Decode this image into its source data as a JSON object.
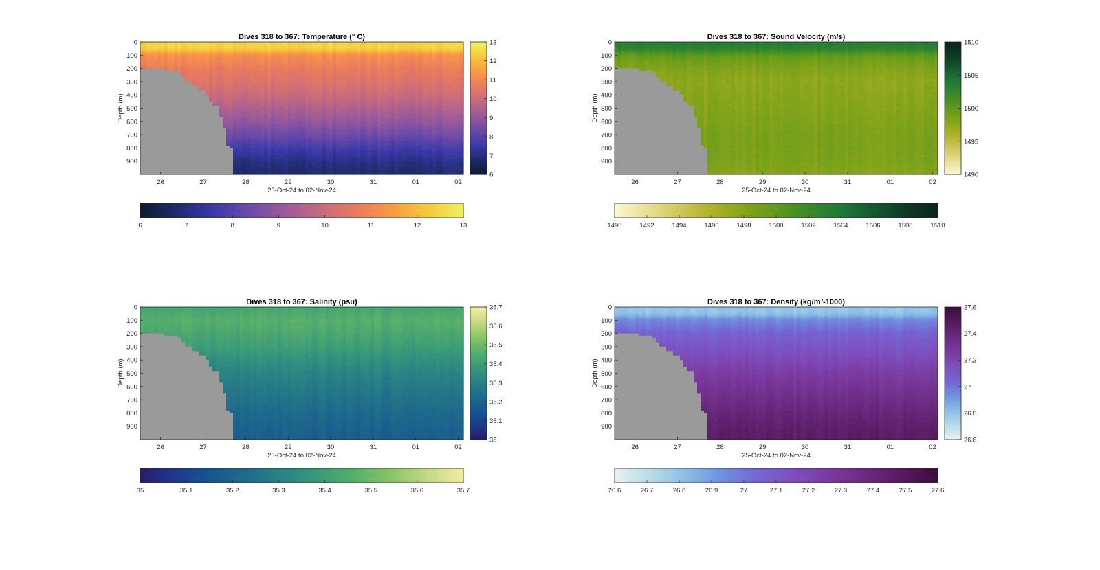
{
  "chart_data": [
    {
      "type": "heatmap",
      "title": "Dives 318 to 367: Temperature (° C)",
      "xlabel": "25-Oct-24 to 02-Nov-24",
      "ylabel": "Depth (m)",
      "x_ticks": [
        "26",
        "27",
        "28",
        "29",
        "30",
        "31",
        "01",
        "02"
      ],
      "y_ticks": [
        "0",
        "100",
        "200",
        "300",
        "400",
        "500",
        "600",
        "700",
        "800",
        "900"
      ],
      "xlim": [
        "25-Oct-24",
        "02-Nov-24"
      ],
      "ylim": [
        1000,
        0
      ],
      "colorbar_range": [
        6,
        13
      ],
      "colorbar_ticks": [
        "6",
        "7",
        "8",
        "9",
        "10",
        "11",
        "12",
        "13"
      ],
      "horizontal_colorbar_ticks": [
        "6",
        "7",
        "8",
        "9",
        "10",
        "11",
        "12",
        "13"
      ],
      "colors": [
        "#0d1a2e",
        "#1d2b6b",
        "#3a3aa8",
        "#6a4aa8",
        "#9a5a9a",
        "#c46a80",
        "#e97a5e",
        "#f99a45",
        "#f5c83a",
        "#f0f060"
      ],
      "profile": {
        "depths": [
          0,
          50,
          100,
          150,
          200,
          300,
          400,
          500,
          600,
          700,
          800,
          900,
          1000
        ],
        "values": [
          12.5,
          12.4,
          11.2,
          11.0,
          10.7,
          10.4,
          10.0,
          9.5,
          9.0,
          8.4,
          7.7,
          7.1,
          6.8
        ]
      }
    },
    {
      "type": "heatmap",
      "title": "Dives 318 to 367: Sound Velocity (m/s)",
      "xlabel": "25-Oct-24 to 02-Nov-24",
      "ylabel": "Depth (m)",
      "x_ticks": [
        "26",
        "27",
        "28",
        "29",
        "30",
        "31",
        "01",
        "02"
      ],
      "y_ticks": [
        "0",
        "100",
        "200",
        "300",
        "400",
        "500",
        "600",
        "700",
        "800",
        "900"
      ],
      "xlim": [
        "25-Oct-24",
        "02-Nov-24"
      ],
      "ylim": [
        1000,
        0
      ],
      "colorbar_range": [
        1490,
        1510
      ],
      "colorbar_ticks": [
        "1490",
        "1495",
        "1500",
        "1505",
        "1510"
      ],
      "horizontal_colorbar_ticks": [
        "1490",
        "1492",
        "1494",
        "1496",
        "1498",
        "1500",
        "1502",
        "1504",
        "1506",
        "1508",
        "1510"
      ],
      "colors": [
        "#fbf7d0",
        "#eadf95",
        "#cfc65a",
        "#aeb12c",
        "#85a41a",
        "#5f9a1c",
        "#3a8a2a",
        "#1f7a36",
        "#155a30",
        "#0e3b24",
        "#0a2519"
      ],
      "profile": {
        "depths": [
          0,
          50,
          100,
          150,
          200,
          300,
          400,
          500,
          600,
          700,
          800,
          900,
          1000
        ],
        "values": [
          1503.5,
          1503.0,
          1500.0,
          1499.0,
          1498.2,
          1497.5,
          1497.8,
          1498.0,
          1498.3,
          1498.6,
          1498.6,
          1498.4,
          1498.0
        ]
      }
    },
    {
      "type": "heatmap",
      "title": "Dives 318 to 367: Salinity (psu)",
      "xlabel": "25-Oct-24 to 02-Nov-24",
      "ylabel": "Depth (m)",
      "x_ticks": [
        "26",
        "27",
        "28",
        "29",
        "30",
        "31",
        "01",
        "02"
      ],
      "y_ticks": [
        "0",
        "100",
        "200",
        "300",
        "400",
        "500",
        "600",
        "700",
        "800",
        "900"
      ],
      "xlim": [
        "25-Oct-24",
        "02-Nov-24"
      ],
      "ylim": [
        1000,
        0
      ],
      "colorbar_range": [
        35,
        35.7
      ],
      "colorbar_ticks": [
        "35",
        "35.1",
        "35.2",
        "35.3",
        "35.4",
        "35.5",
        "35.6",
        "35.7"
      ],
      "horizontal_colorbar_ticks": [
        "35",
        "35.1",
        "35.2",
        "35.3",
        "35.4",
        "35.5",
        "35.6",
        "35.7"
      ],
      "colors": [
        "#2a1a6a",
        "#1e3a8f",
        "#17568f",
        "#1f6d8a",
        "#2a8384",
        "#3b9a78",
        "#58b06a",
        "#8ac46a",
        "#c4d883",
        "#f4eca0"
      ],
      "profile": {
        "depths": [
          0,
          50,
          100,
          150,
          200,
          300,
          400,
          500,
          600,
          700,
          800,
          900,
          1000
        ],
        "values": [
          35.42,
          35.44,
          35.46,
          35.45,
          35.43,
          35.4,
          35.35,
          35.31,
          35.28,
          35.25,
          35.22,
          35.2,
          35.18
        ]
      }
    },
    {
      "type": "heatmap",
      "title": "Dives 318 to 367: Density (kg/m³-1000)",
      "xlabel": "25-Oct-24 to 02-Nov-24",
      "ylabel": "Depth (m)",
      "x_ticks": [
        "26",
        "27",
        "28",
        "29",
        "30",
        "31",
        "01",
        "02"
      ],
      "y_ticks": [
        "0",
        "100",
        "200",
        "300",
        "400",
        "500",
        "600",
        "700",
        "800",
        "900"
      ],
      "xlim": [
        "25-Oct-24",
        "02-Nov-24"
      ],
      "ylim": [
        1000,
        0
      ],
      "colorbar_range": [
        26.6,
        27.6
      ],
      "colorbar_ticks": [
        "26.6",
        "26.8",
        "27",
        "27.2",
        "27.4",
        "27.6"
      ],
      "horizontal_colorbar_ticks": [
        "26.6",
        "26.7",
        "26.8",
        "26.9",
        "27",
        "27.1",
        "27.2",
        "27.3",
        "27.4",
        "27.5",
        "27.6"
      ],
      "colors": [
        "#e8f2f4",
        "#b8dbe8",
        "#8bbde6",
        "#6f8fe0",
        "#7566d2",
        "#7e4ebd",
        "#7a3aa0",
        "#6b2a80",
        "#561a5e",
        "#3a0e3c"
      ],
      "profile": {
        "depths": [
          0,
          50,
          100,
          150,
          200,
          300,
          400,
          500,
          600,
          700,
          800,
          900,
          1000
        ],
        "values": [
          26.78,
          26.8,
          26.95,
          27.0,
          27.06,
          27.12,
          27.18,
          27.25,
          27.3,
          27.35,
          27.4,
          27.44,
          27.47
        ]
      }
    }
  ]
}
